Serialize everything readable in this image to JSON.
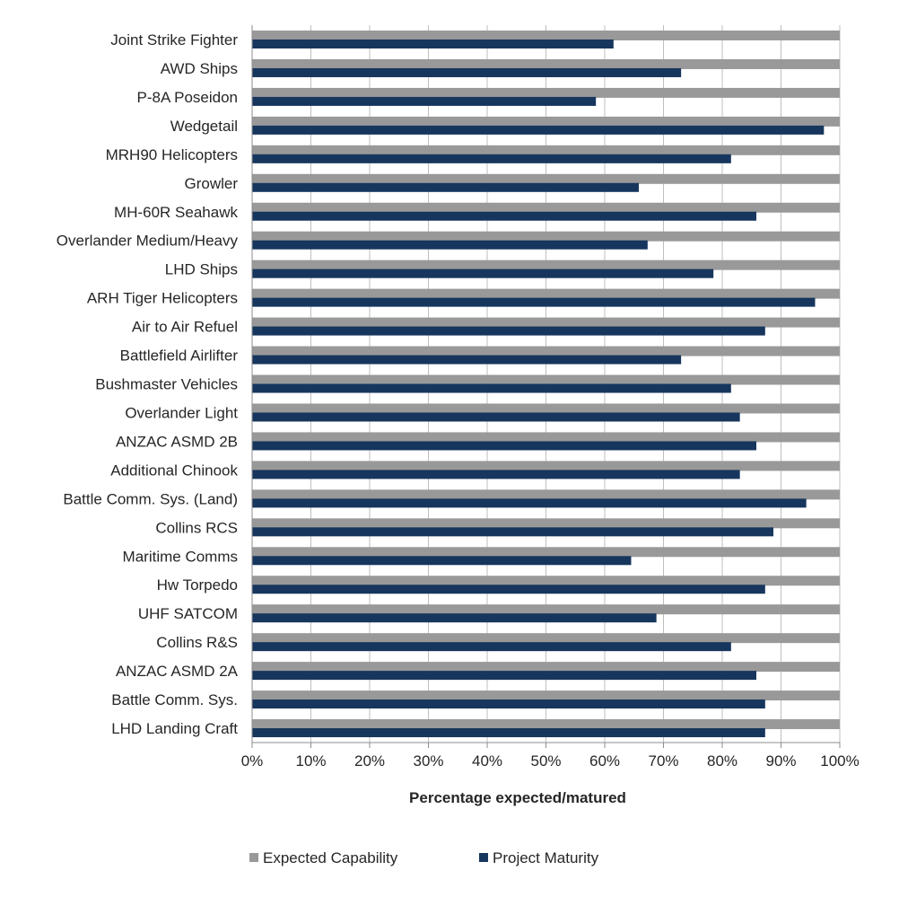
{
  "chart_data": {
    "type": "bar",
    "orientation": "horizontal",
    "xlabel": "Percentage expected/matured",
    "ylabel": "",
    "xlim": [
      0,
      100
    ],
    "x_ticks": [
      "0%",
      "10%",
      "20%",
      "30%",
      "40%",
      "50%",
      "60%",
      "70%",
      "80%",
      "90%",
      "100%"
    ],
    "grid": "vertical",
    "legend_position": "bottom",
    "categories": [
      "Joint Strike Fighter",
      "AWD Ships",
      "P-8A Poseidon",
      "Wedgetail",
      "MRH90 Helicopters",
      "Growler",
      "MH-60R Seahawk",
      "Overlander Medium/Heavy",
      "LHD Ships",
      "ARH Tiger Helicopters",
      "Air to Air Refuel",
      "Battlefield Airlifter",
      "Bushmaster Vehicles",
      "Overlander Light",
      "ANZAC ASMD 2B",
      "Additional Chinook",
      "Battle Comm. Sys. (Land)",
      "Collins RCS",
      "Maritime Comms",
      "Hw Torpedo",
      "UHF SATCOM",
      "Collins R&S",
      "ANZAC ASMD 2A",
      "Battle Comm. Sys.",
      "LHD Landing Craft"
    ],
    "series": [
      {
        "name": "Expected Capability",
        "color": "#999999",
        "values": [
          100,
          100,
          100,
          100,
          100,
          100,
          100,
          100,
          100,
          100,
          100,
          100,
          100,
          100,
          100,
          100,
          100,
          100,
          100,
          100,
          100,
          100,
          100,
          100,
          100
        ]
      },
      {
        "name": "Project Maturity",
        "color": "#17365d",
        "values": [
          61.5,
          73,
          58.5,
          97.3,
          81.5,
          65.8,
          85.8,
          67.3,
          78.5,
          95.8,
          87.3,
          73,
          81.5,
          83,
          85.8,
          83,
          94.3,
          88.7,
          64.5,
          87.3,
          68.8,
          81.5,
          85.8,
          87.3,
          87.3
        ]
      }
    ]
  }
}
